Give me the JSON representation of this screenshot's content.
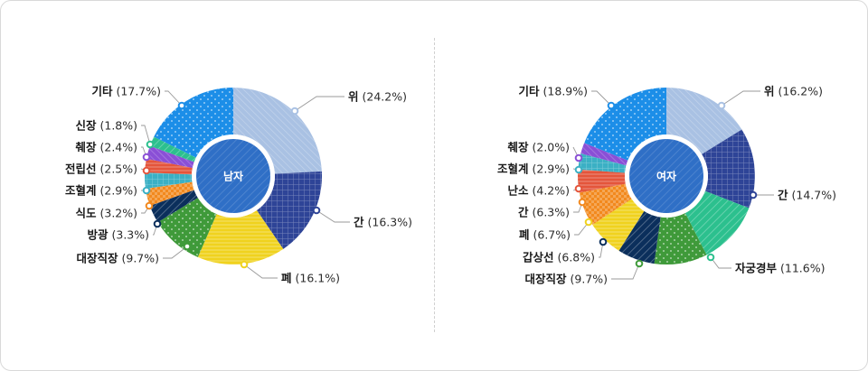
{
  "colors": {
    "wi": "#a9c1e3",
    "gan": "#2e4497",
    "pye": "#f0d21e",
    "green": "#3f9a3a",
    "navy": "#0b2f5c",
    "orange": "#f2891e",
    "teal": "#3bb0c4",
    "red": "#e4553b",
    "purple": "#8a4fd6",
    "mint": "#2cc08e",
    "blue": "#1c8ee8",
    "ring": "#2f6fc6"
  },
  "chart_data": [
    {
      "type": "pie",
      "title": "남자",
      "slices": [
        {
          "name": "위",
          "value": 24.2,
          "label": "위 (24.2%)",
          "color": "wi"
        },
        {
          "name": "간",
          "value": 16.3,
          "label": "간 (16.3%)",
          "color": "gan"
        },
        {
          "name": "폐",
          "value": 16.1,
          "label": "폐 (16.1%)",
          "color": "pye"
        },
        {
          "name": "대장직장",
          "value": 9.7,
          "label": "대장직장 (9.7%)",
          "color": "green"
        },
        {
          "name": "방광",
          "value": 3.3,
          "label": "방광 (3.3%)",
          "color": "navy"
        },
        {
          "name": "식도",
          "value": 3.2,
          "label": "식도 (3.2%)",
          "color": "orange"
        },
        {
          "name": "조혈계",
          "value": 2.9,
          "label": "조혈계 (2.9%)",
          "color": "teal"
        },
        {
          "name": "전립선",
          "value": 2.5,
          "label": "전립선 (2.5%)",
          "color": "red"
        },
        {
          "name": "췌장",
          "value": 2.4,
          "label": "췌장 (2.4%)",
          "color": "purple"
        },
        {
          "name": "신장",
          "value": 1.8,
          "label": "신장 (1.8%)",
          "color": "mint"
        },
        {
          "name": "기타",
          "value": 17.7,
          "label": "기타 (17.7%)",
          "color": "blue"
        }
      ]
    },
    {
      "type": "pie",
      "title": "여자",
      "slices": [
        {
          "name": "위",
          "value": 16.2,
          "label": "위 (16.2%)",
          "color": "wi"
        },
        {
          "name": "간",
          "value": 14.7,
          "label": "간 (14.7%)",
          "color": "gan"
        },
        {
          "name": "자궁경부",
          "value": 11.6,
          "label": "자궁경부 (11.6%)",
          "color": "mint"
        },
        {
          "name": "대장직장",
          "value": 9.7,
          "label": "대장직장 (9.7%)",
          "color": "green"
        },
        {
          "name": "갑상선",
          "value": 6.8,
          "label": "갑상선 (6.8%)",
          "color": "navy"
        },
        {
          "name": "폐",
          "value": 6.7,
          "label": "폐 (6.7%)",
          "color": "pye"
        },
        {
          "name": "간",
          "value": 6.3,
          "label": "간 (6.3%)",
          "color": "orange"
        },
        {
          "name": "난소",
          "value": 4.2,
          "label": "난소 (4.2%)",
          "color": "red"
        },
        {
          "name": "조혈계",
          "value": 2.9,
          "label": "조혈계 (2.9%)",
          "color": "teal"
        },
        {
          "name": "췌장",
          "value": 2.0,
          "label": "췌장 (2.0%)",
          "color": "purple"
        },
        {
          "name": "기타",
          "value": 18.9,
          "label": "기타 (18.9%)",
          "color": "blue"
        }
      ]
    }
  ]
}
